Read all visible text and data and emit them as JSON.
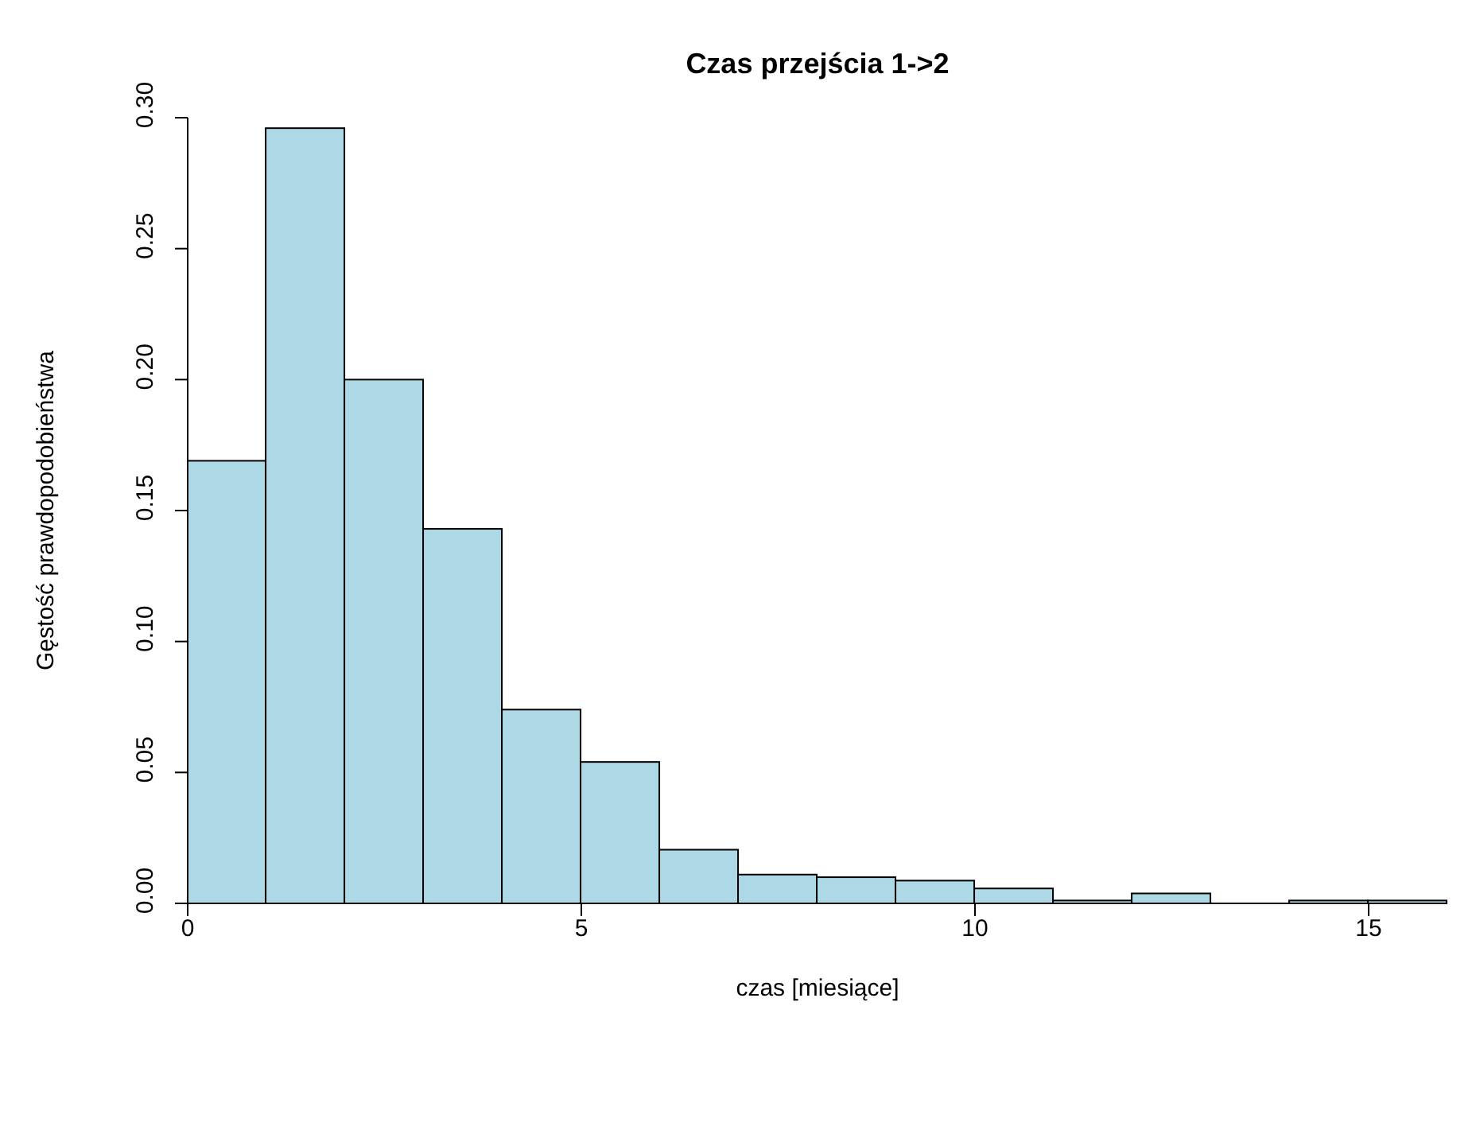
{
  "chart_data": {
    "type": "histogram",
    "title": "Czas przejścia 1->2",
    "xlabel": "czas [miesiące]",
    "ylabel": "Gęstość prawdopodobieństwa",
    "bins": [
      0,
      1,
      2,
      3,
      4,
      5,
      6,
      7,
      8,
      9,
      10,
      11,
      12,
      13,
      14,
      15,
      16
    ],
    "values": [
      0.169,
      0.296,
      0.2,
      0.143,
      0.074,
      0.054,
      0.0205,
      0.011,
      0.01,
      0.0087,
      0.0057,
      0.0011,
      0.0038,
      0,
      0.0011,
      0.0011
    ],
    "color": "#add8e6",
    "xlim": [
      0,
      16
    ],
    "xticks": [
      0,
      5,
      10,
      15
    ],
    "ylim": [
      0,
      0.3
    ],
    "yticks": [
      {
        "value": 0,
        "label": "0.00"
      },
      {
        "value": 0.05,
        "label": "0.05"
      },
      {
        "value": 0.1,
        "label": "0.10"
      },
      {
        "value": 0.15,
        "label": "0.15"
      },
      {
        "value": 0.2,
        "label": "0.20"
      },
      {
        "value": 0.25,
        "label": "0.25"
      },
      {
        "value": 0.3,
        "label": "0.30"
      }
    ],
    "grid": false
  }
}
